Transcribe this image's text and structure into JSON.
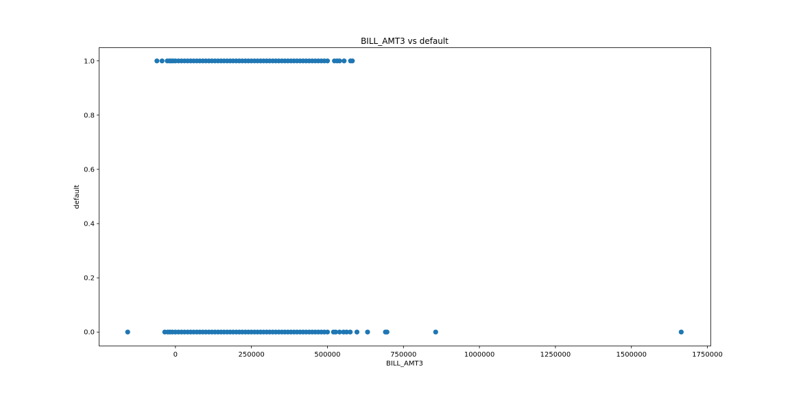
{
  "chart_data": {
    "type": "scatter",
    "title": "BILL_AMT3 vs default",
    "xlabel": "BILL_AMT3",
    "ylabel": "default",
    "xlim": [
      -250000,
      1760000
    ],
    "ylim": [
      -0.05,
      1.05
    ],
    "x_ticks": [
      0,
      250000,
      500000,
      750000,
      1000000,
      1250000,
      1500000,
      1750000
    ],
    "x_tick_labels": [
      "0",
      "250000",
      "500000",
      "750000",
      "1000000",
      "1250000",
      "1500000",
      "1750000"
    ],
    "y_ticks": [
      0.0,
      0.2,
      0.4,
      0.6,
      0.8,
      1.0
    ],
    "y_tick_labels": [
      "0.0",
      "0.2",
      "0.4",
      "0.6",
      "0.8",
      "1.0"
    ],
    "grid": false,
    "color": "#1f77b4",
    "series": [
      {
        "x": [
          -61000,
          -44000,
          -27000,
          -20000,
          -14000,
          -8000,
          0,
          10000,
          20000,
          30000,
          40000,
          50000,
          60000,
          70000,
          80000,
          90000,
          100000,
          110000,
          120000,
          130000,
          140000,
          150000,
          160000,
          170000,
          180000,
          190000,
          200000,
          210000,
          220000,
          230000,
          240000,
          250000,
          260000,
          270000,
          280000,
          290000,
          300000,
          310000,
          320000,
          330000,
          340000,
          350000,
          360000,
          370000,
          380000,
          390000,
          400000,
          410000,
          420000,
          430000,
          440000,
          450000,
          460000,
          470000,
          480000,
          490000,
          500000,
          523000,
          532000,
          540000,
          555000,
          576000,
          582000
        ],
        "y": [
          1,
          1,
          1,
          1,
          1,
          1,
          1,
          1,
          1,
          1,
          1,
          1,
          1,
          1,
          1,
          1,
          1,
          1,
          1,
          1,
          1,
          1,
          1,
          1,
          1,
          1,
          1,
          1,
          1,
          1,
          1,
          1,
          1,
          1,
          1,
          1,
          1,
          1,
          1,
          1,
          1,
          1,
          1,
          1,
          1,
          1,
          1,
          1,
          1,
          1,
          1,
          1,
          1,
          1,
          1,
          1,
          1,
          1,
          1,
          1,
          1,
          1,
          1
        ]
      },
      {
        "x": [
          -157000,
          -35000,
          -25000,
          -18000,
          -10000,
          0,
          10000,
          20000,
          30000,
          40000,
          50000,
          60000,
          70000,
          80000,
          90000,
          100000,
          110000,
          120000,
          130000,
          140000,
          150000,
          160000,
          170000,
          180000,
          190000,
          200000,
          210000,
          220000,
          230000,
          240000,
          250000,
          260000,
          270000,
          280000,
          290000,
          300000,
          310000,
          320000,
          330000,
          340000,
          350000,
          360000,
          370000,
          380000,
          390000,
          400000,
          410000,
          420000,
          430000,
          440000,
          450000,
          460000,
          470000,
          480000,
          490000,
          500000,
          520000,
          527000,
          540000,
          553000,
          563000,
          575000,
          597000,
          632000,
          691000,
          696000,
          856000,
          1664000
        ],
        "y": [
          0,
          0,
          0,
          0,
          0,
          0,
          0,
          0,
          0,
          0,
          0,
          0,
          0,
          0,
          0,
          0,
          0,
          0,
          0,
          0,
          0,
          0,
          0,
          0,
          0,
          0,
          0,
          0,
          0,
          0,
          0,
          0,
          0,
          0,
          0,
          0,
          0,
          0,
          0,
          0,
          0,
          0,
          0,
          0,
          0,
          0,
          0,
          0,
          0,
          0,
          0,
          0,
          0,
          0,
          0,
          0,
          0,
          0,
          0,
          0,
          0,
          0,
          0,
          0,
          0,
          0,
          0,
          0
        ]
      }
    ]
  }
}
